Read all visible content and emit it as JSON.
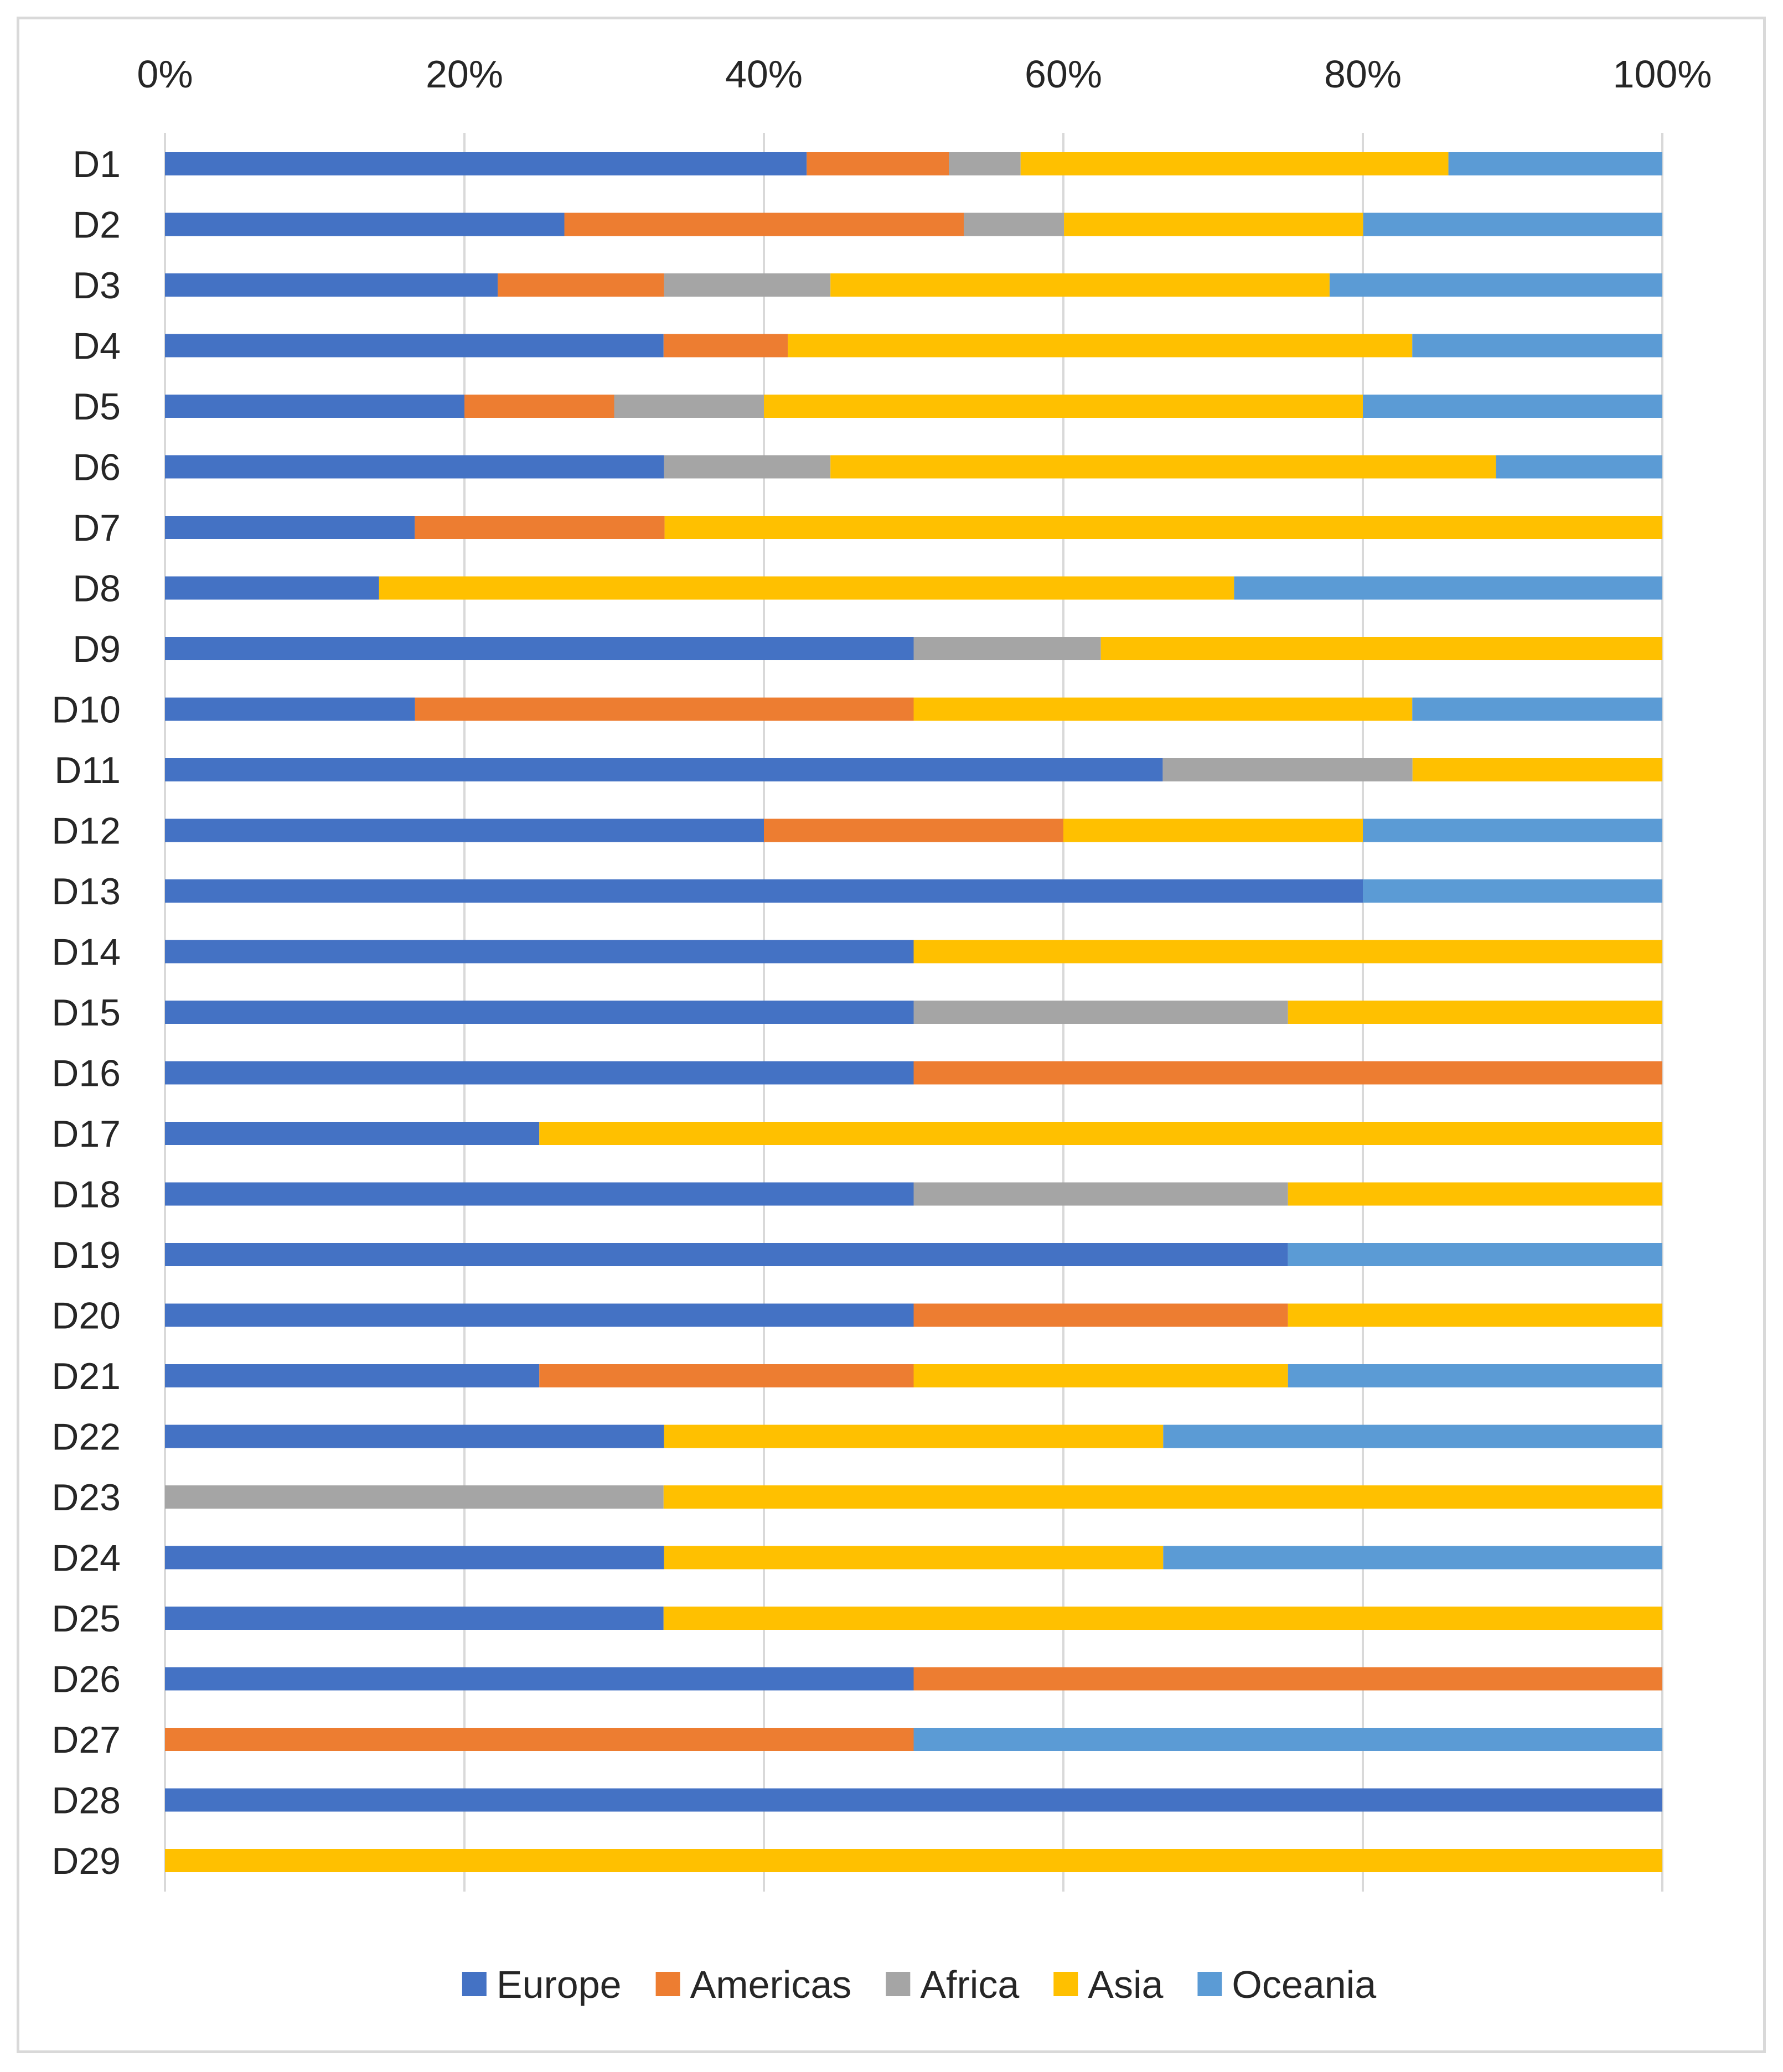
{
  "chart_data": {
    "type": "bar",
    "orientation": "horizontal",
    "stacked": "percent",
    "title": "",
    "xlabel": "",
    "ylabel": "",
    "xlim": [
      0,
      100
    ],
    "grid": true,
    "legend_position": "bottom",
    "x_ticks": [
      "0%",
      "20%",
      "40%",
      "60%",
      "80%",
      "100%"
    ],
    "categories": [
      "D1",
      "D2",
      "D3",
      "D4",
      "D5",
      "D6",
      "D7",
      "D8",
      "D9",
      "D10",
      "D11",
      "D12",
      "D13",
      "D14",
      "D15",
      "D16",
      "D17",
      "D18",
      "D19",
      "D20",
      "D21",
      "D22",
      "D23",
      "D24",
      "D25",
      "D26",
      "D27",
      "D28",
      "D29"
    ],
    "series": [
      {
        "name": "Europe",
        "color": "#4472C4",
        "values": [
          42.9,
          26.7,
          22.2,
          33.3,
          20.0,
          33.3,
          16.7,
          14.3,
          50.0,
          16.7,
          66.7,
          40.0,
          80.0,
          50.0,
          50.0,
          50.0,
          25.0,
          50.0,
          75.0,
          50.0,
          25.0,
          33.3,
          0.0,
          33.3,
          33.3,
          50.0,
          0.0,
          100.0,
          0.0
        ]
      },
      {
        "name": "Americas",
        "color": "#ED7D31",
        "values": [
          9.5,
          26.7,
          11.1,
          8.3,
          10.0,
          0.0,
          16.7,
          0.0,
          0.0,
          33.3,
          0.0,
          20.0,
          0.0,
          0.0,
          0.0,
          50.0,
          0.0,
          0.0,
          0.0,
          25.0,
          25.0,
          0.0,
          0.0,
          0.0,
          0.0,
          50.0,
          50.0,
          0.0,
          0.0
        ]
      },
      {
        "name": "Africa",
        "color": "#A5A5A5",
        "values": [
          4.8,
          6.7,
          11.1,
          0.0,
          10.0,
          11.1,
          0.0,
          0.0,
          12.5,
          0.0,
          16.7,
          0.0,
          0.0,
          0.0,
          25.0,
          0.0,
          0.0,
          25.0,
          0.0,
          0.0,
          0.0,
          0.0,
          33.3,
          0.0,
          0.0,
          0.0,
          0.0,
          0.0,
          0.0
        ]
      },
      {
        "name": "Asia",
        "color": "#FFC000",
        "values": [
          28.6,
          20.0,
          33.3,
          41.7,
          40.0,
          44.4,
          66.7,
          57.1,
          37.5,
          33.3,
          16.7,
          20.0,
          0.0,
          50.0,
          25.0,
          0.0,
          75.0,
          25.0,
          0.0,
          25.0,
          25.0,
          33.3,
          66.7,
          33.3,
          66.7,
          0.0,
          0.0,
          0.0,
          100.0
        ]
      },
      {
        "name": "Oceania",
        "color": "#5B9BD5",
        "values": [
          14.3,
          20.0,
          22.2,
          16.7,
          20.0,
          11.1,
          0.0,
          28.6,
          0.0,
          16.7,
          0.0,
          20.0,
          20.0,
          0.0,
          0.0,
          0.0,
          0.0,
          0.0,
          25.0,
          0.0,
          25.0,
          33.3,
          0.0,
          33.3,
          0.0,
          0.0,
          50.0,
          0.0,
          0.0
        ]
      }
    ]
  }
}
